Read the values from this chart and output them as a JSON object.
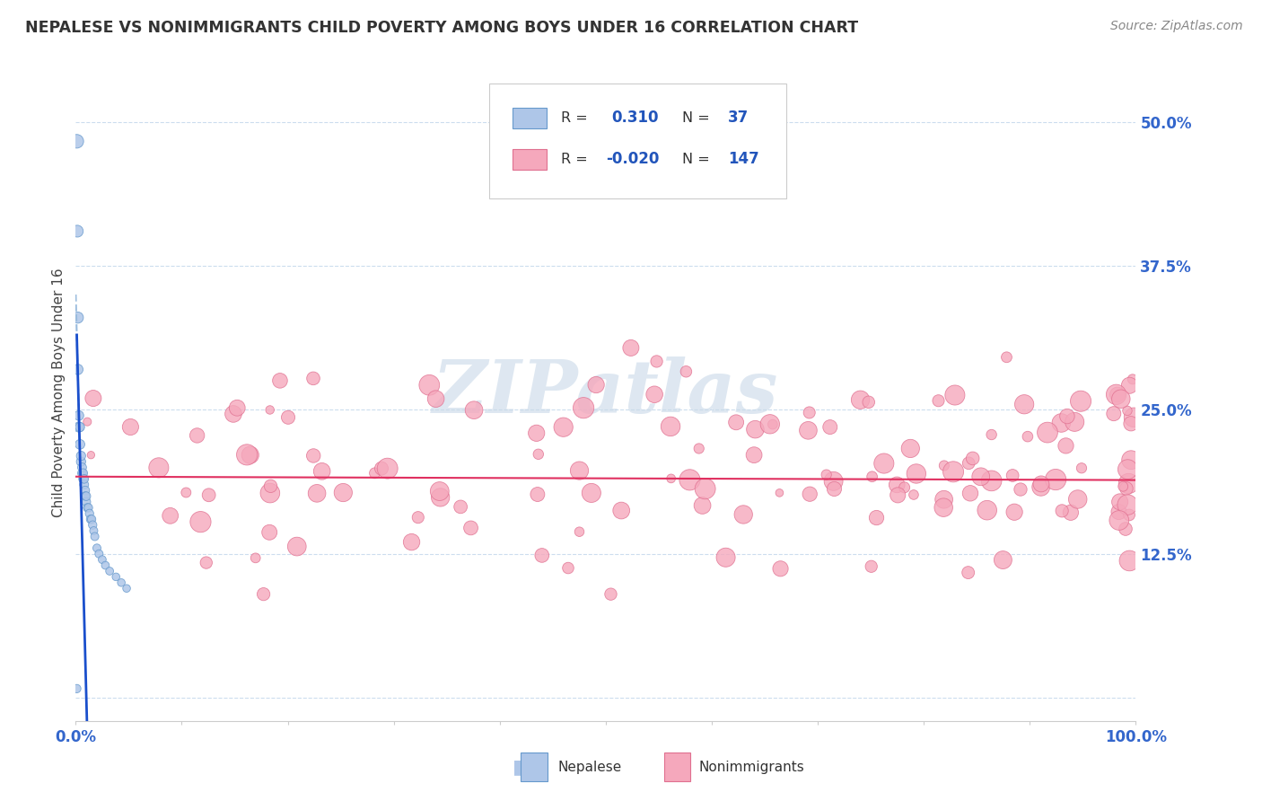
{
  "title": "NEPALESE VS NONIMMIGRANTS CHILD POVERTY AMONG BOYS UNDER 16 CORRELATION CHART",
  "source": "Source: ZipAtlas.com",
  "ylabel": "Child Poverty Among Boys Under 16",
  "xlim": [
    0.0,
    1.0
  ],
  "ylim": [
    -0.02,
    0.55
  ],
  "ytick_vals": [
    0.0,
    0.125,
    0.25,
    0.375,
    0.5
  ],
  "ytick_labels": [
    "",
    "12.5%",
    "25.0%",
    "37.5%",
    "50.0%"
  ],
  "xtick_vals": [
    0.0,
    0.1,
    0.2,
    0.3,
    0.4,
    0.5,
    0.6,
    0.7,
    0.8,
    0.9,
    1.0
  ],
  "xtick_labels": [
    "0.0%",
    "",
    "",
    "",
    "",
    "",
    "",
    "",
    "",
    "",
    "100.0%"
  ],
  "nepalese_R": "0.310",
  "nepalese_N": "37",
  "nonimm_R": "-0.020",
  "nonimm_N": "147",
  "nepalese_color": "#aec6e8",
  "nonimm_color": "#f5a8bc",
  "nepalese_edge": "#6699cc",
  "nonimm_edge": "#e07090",
  "trend_blue": "#1a4fcc",
  "trend_pink": "#e03060",
  "trend_dash": "#99bbdd",
  "watermark": "ZIPatlas",
  "watermark_color": "#c8d8e8",
  "legend_R_color": "#2255bb",
  "legend_label_color": "#333333",
  "tick_color": "#3366cc"
}
